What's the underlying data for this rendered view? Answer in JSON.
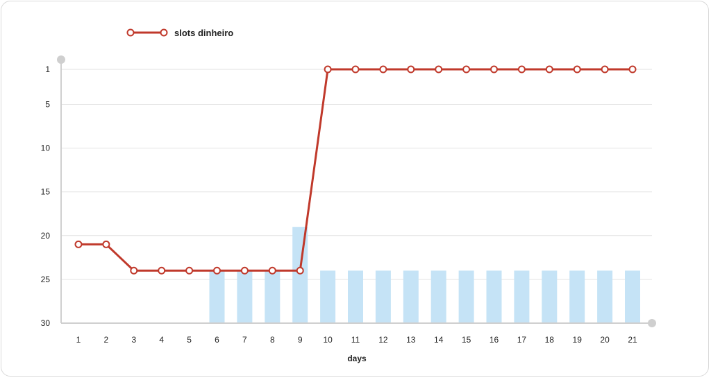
{
  "chart_data": {
    "type": "line",
    "x": [
      1,
      2,
      3,
      4,
      5,
      6,
      7,
      8,
      9,
      10,
      11,
      12,
      13,
      14,
      15,
      16,
      17,
      18,
      19,
      20,
      21
    ],
    "series": [
      {
        "name": "slots dinheiro",
        "type": "line",
        "color": "#c0392b",
        "values": [
          21,
          21,
          24,
          24,
          24,
          24,
          24,
          24,
          24,
          1,
          1,
          1,
          1,
          1,
          1,
          1,
          1,
          1,
          1,
          1,
          1
        ]
      },
      {
        "type": "bar",
        "color": "#c5e3f6",
        "values": [
          null,
          null,
          null,
          null,
          null,
          24,
          24,
          24,
          19,
          24,
          24,
          24,
          24,
          24,
          24,
          24,
          24,
          24,
          24,
          24,
          24
        ]
      }
    ],
    "xlabel": "days",
    "ylabel": "",
    "yticks": [
      "1",
      "5",
      "10",
      "15",
      "20",
      "25",
      "30"
    ],
    "ylim": [
      1,
      30
    ],
    "y_reversed": true,
    "grid": true,
    "legend": "top-left"
  }
}
